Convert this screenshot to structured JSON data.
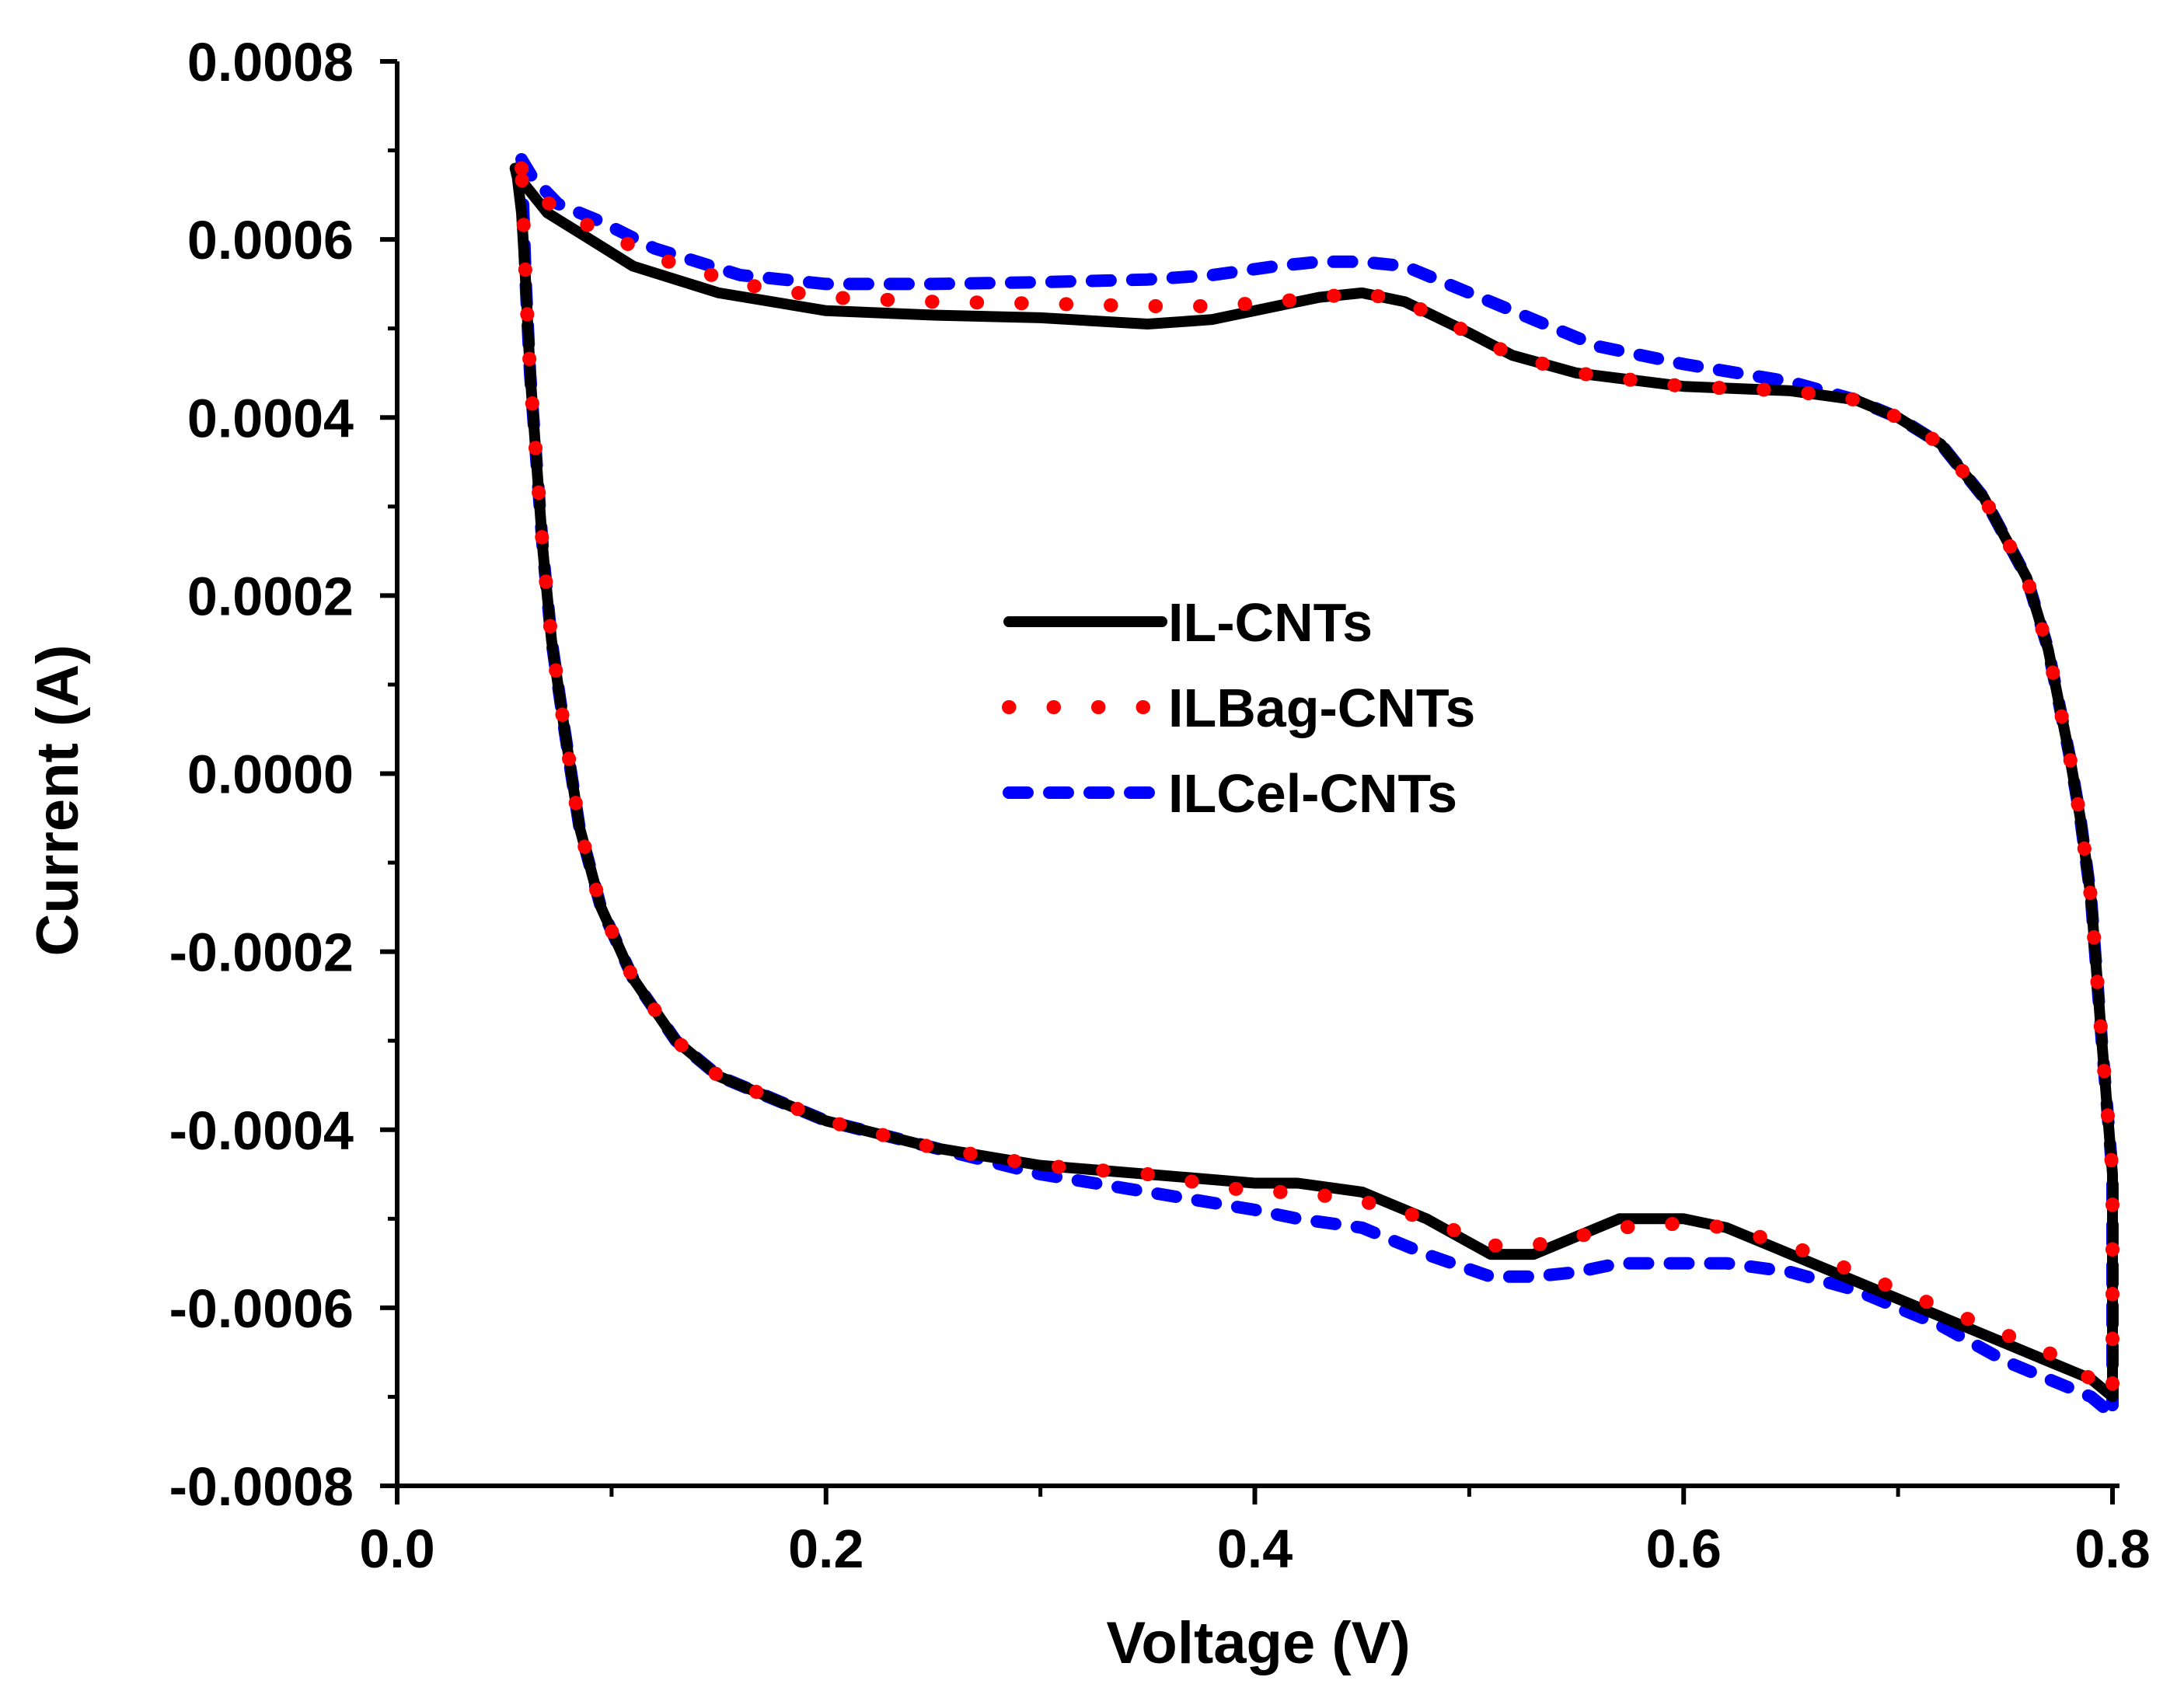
{
  "chart_data": {
    "type": "line",
    "title": "",
    "xlabel": "Voltage (V)",
    "ylabel": "Current (A)",
    "xlim": [
      0.0,
      0.8
    ],
    "ylim": [
      -0.0008,
      0.0008
    ],
    "grid": false,
    "legend_position": "center",
    "x_tick_labels": [
      "0.0",
      "0.2",
      "0.4",
      "0.6",
      "0.8"
    ],
    "x_tick_values": [
      0.0,
      0.2,
      0.4,
      0.6,
      0.8
    ],
    "y_tick_labels": [
      "0.0008",
      "0.0006",
      "0.0004",
      "0.0002",
      "0.0000",
      "-0.0002",
      "-0.0004",
      "-0.0006",
      "-0.0008"
    ],
    "y_tick_values": [
      0.0008,
      0.0006,
      0.0004,
      0.0002,
      0.0,
      -0.0002,
      -0.0004,
      -0.0006,
      -0.0008
    ],
    "series": [
      {
        "name": "IL-CNTs",
        "color": "#000000",
        "style": "solid",
        "x": [
          0.055,
          0.06,
          0.07,
          0.09,
          0.11,
          0.15,
          0.2,
          0.25,
          0.3,
          0.35,
          0.38,
          0.41,
          0.43,
          0.45,
          0.47,
          0.5,
          0.52,
          0.55,
          0.6,
          0.65,
          0.68,
          0.7,
          0.72,
          0.74,
          0.76,
          0.77,
          0.78,
          0.785,
          0.79,
          0.795,
          0.8,
          0.8,
          0.79,
          0.77,
          0.75,
          0.72,
          0.7,
          0.68,
          0.65,
          0.62,
          0.6,
          0.57,
          0.55,
          0.53,
          0.51,
          0.48,
          0.45,
          0.42,
          0.4,
          0.35,
          0.3,
          0.25,
          0.2,
          0.17,
          0.15,
          0.13,
          0.11,
          0.095,
          0.085,
          0.078,
          0.072,
          0.068,
          0.065,
          0.062,
          0.06,
          0.058,
          0.056,
          0.055
        ],
        "y": [
          0.00068,
          0.00066,
          0.00063,
          0.0006,
          0.00057,
          0.00054,
          0.00052,
          0.000515,
          0.000512,
          0.000505,
          0.00051,
          0.000525,
          0.000535,
          0.00054,
          0.00053,
          0.000495,
          0.00047,
          0.00045,
          0.000435,
          0.00043,
          0.00042,
          0.0004,
          0.00037,
          0.00031,
          0.00022,
          0.00014,
          2e-05,
          -5e-05,
          -0.00014,
          -0.0003,
          -0.00045,
          -0.0007,
          -0.00068,
          -0.00066,
          -0.00064,
          -0.00061,
          -0.00059,
          -0.00057,
          -0.00054,
          -0.00051,
          -0.0005,
          -0.0005,
          -0.00052,
          -0.00054,
          -0.00054,
          -0.0005,
          -0.00047,
          -0.00046,
          -0.00046,
          -0.00045,
          -0.00044,
          -0.00042,
          -0.00039,
          -0.00036,
          -0.00034,
          -0.0003,
          -0.00023,
          -0.00015,
          -6e-05,
          5e-05,
          0.00015,
          0.00025,
          0.00035,
          0.00045,
          0.00055,
          0.00063,
          0.00067,
          0.00068
        ]
      },
      {
        "name": "ILBag-CNTs",
        "color": "#ff0000",
        "style": "dotted",
        "x": [
          0.058,
          0.063,
          0.075,
          0.095,
          0.12,
          0.16,
          0.2,
          0.25,
          0.3,
          0.35,
          0.38,
          0.41,
          0.43,
          0.45,
          0.47,
          0.5,
          0.52,
          0.55,
          0.6,
          0.65,
          0.68,
          0.7,
          0.72,
          0.74,
          0.76,
          0.77,
          0.78,
          0.785,
          0.79,
          0.795,
          0.8,
          0.8,
          0.79,
          0.77,
          0.75,
          0.72,
          0.7,
          0.68,
          0.65,
          0.62,
          0.6,
          0.57,
          0.55,
          0.53,
          0.51,
          0.48,
          0.45,
          0.42,
          0.4,
          0.35,
          0.3,
          0.25,
          0.2,
          0.17,
          0.15,
          0.13,
          0.11,
          0.095,
          0.085,
          0.078,
          0.072,
          0.068,
          0.065,
          0.062,
          0.06,
          0.058
        ],
        "y": [
          0.00068,
          0.00066,
          0.00063,
          0.00061,
          0.00058,
          0.00055,
          0.000535,
          0.00053,
          0.000528,
          0.000525,
          0.000525,
          0.00053,
          0.000535,
          0.00054,
          0.00053,
          0.000495,
          0.00047,
          0.00045,
          0.000435,
          0.00043,
          0.00042,
          0.0004,
          0.00037,
          0.00031,
          0.00022,
          0.00014,
          2e-05,
          -5e-05,
          -0.00014,
          -0.0003,
          -0.00045,
          -0.0007,
          -0.00068,
          -0.00065,
          -0.00063,
          -0.0006,
          -0.00058,
          -0.00056,
          -0.00053,
          -0.00051,
          -0.000505,
          -0.00051,
          -0.00052,
          -0.00053,
          -0.00053,
          -0.0005,
          -0.00048,
          -0.00047,
          -0.00047,
          -0.00045,
          -0.00044,
          -0.00042,
          -0.00039,
          -0.00036,
          -0.00034,
          -0.0003,
          -0.00023,
          -0.00015,
          -6e-05,
          5e-05,
          0.00015,
          0.00025,
          0.00035,
          0.00045,
          0.00055,
          0.00068
        ]
      },
      {
        "name": "ILCel-CNTs",
        "color": "#0000ff",
        "style": "dashed",
        "x": [
          0.058,
          0.063,
          0.075,
          0.095,
          0.12,
          0.16,
          0.2,
          0.25,
          0.3,
          0.35,
          0.38,
          0.41,
          0.43,
          0.45,
          0.47,
          0.5,
          0.53,
          0.56,
          0.6,
          0.65,
          0.68,
          0.7,
          0.72,
          0.74,
          0.76,
          0.77,
          0.78,
          0.785,
          0.79,
          0.795,
          0.8,
          0.8,
          0.79,
          0.77,
          0.75,
          0.72,
          0.7,
          0.68,
          0.65,
          0.62,
          0.6,
          0.57,
          0.55,
          0.53,
          0.51,
          0.48,
          0.45,
          0.42,
          0.4,
          0.35,
          0.3,
          0.25,
          0.2,
          0.17,
          0.15,
          0.13,
          0.11,
          0.095,
          0.085,
          0.078,
          0.072,
          0.068,
          0.065,
          0.062,
          0.06,
          0.058
        ],
        "y": [
          0.00069,
          0.00067,
          0.00064,
          0.00062,
          0.00059,
          0.00056,
          0.00055,
          0.00055,
          0.000552,
          0.000555,
          0.00056,
          0.00057,
          0.000575,
          0.000575,
          0.00057,
          0.00054,
          0.00051,
          0.00048,
          0.00046,
          0.00044,
          0.00042,
          0.0004,
          0.00037,
          0.00031,
          0.00022,
          0.00014,
          2e-05,
          -5e-05,
          -0.00014,
          -0.0003,
          -0.00045,
          -0.00072,
          -0.0007,
          -0.00068,
          -0.00066,
          -0.00062,
          -0.0006,
          -0.00058,
          -0.00056,
          -0.00055,
          -0.00055,
          -0.00055,
          -0.00056,
          -0.000565,
          -0.000565,
          -0.00054,
          -0.00051,
          -0.0005,
          -0.00049,
          -0.00047,
          -0.00045,
          -0.00042,
          -0.00039,
          -0.00036,
          -0.00034,
          -0.0003,
          -0.00023,
          -0.00015,
          -6e-05,
          5e-05,
          0.00015,
          0.00025,
          0.00035,
          0.00045,
          0.00055,
          0.00069
        ]
      }
    ]
  }
}
